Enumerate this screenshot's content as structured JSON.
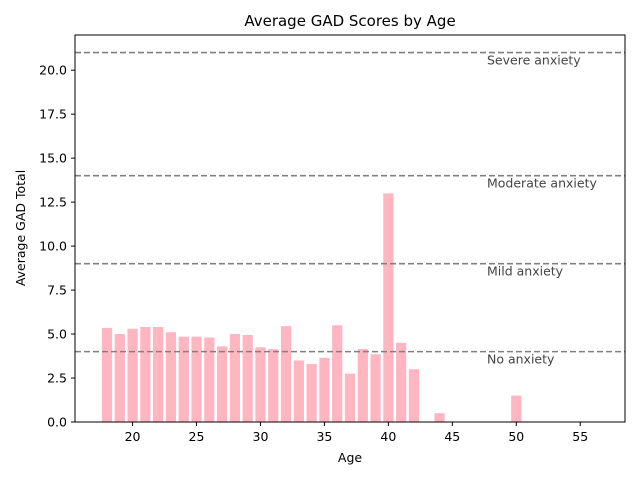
{
  "chart_data": {
    "type": "bar",
    "title": "Average GAD Scores by Age",
    "xlabel": "Age",
    "ylabel": "Average GAD Total",
    "xlim": [
      15.5,
      58.5
    ],
    "ylim": [
      0,
      22
    ],
    "xticks": [
      20,
      25,
      30,
      35,
      40,
      45,
      50,
      55
    ],
    "yticks": [
      "0.0",
      "2.5",
      "5.0",
      "7.5",
      "10.0",
      "12.5",
      "15.0",
      "17.5",
      "20.0"
    ],
    "bar_color": "#ffb6c1",
    "bar_width": 0.8,
    "x": [
      18,
      19,
      20,
      21,
      22,
      23,
      24,
      25,
      26,
      27,
      28,
      29,
      30,
      31,
      32,
      33,
      34,
      35,
      36,
      37,
      38,
      39,
      40,
      41,
      42,
      44,
      50
    ],
    "values": [
      5.35,
      5.0,
      5.3,
      5.4,
      5.4,
      5.1,
      4.85,
      4.85,
      4.8,
      4.3,
      5.0,
      4.95,
      4.25,
      4.15,
      5.45,
      3.5,
      3.3,
      3.65,
      5.5,
      2.75,
      4.15,
      3.85,
      13.0,
      4.5,
      3.0,
      0.5,
      1.5
    ],
    "thresholds": [
      {
        "value": 4,
        "label": "No anxiety"
      },
      {
        "value": 9,
        "label": "Mild anxiety"
      },
      {
        "value": 14,
        "label": "Moderate anxiety"
      },
      {
        "value": 21,
        "label": "Severe anxiety"
      }
    ],
    "threshold_color": "#808080",
    "grid": false
  }
}
